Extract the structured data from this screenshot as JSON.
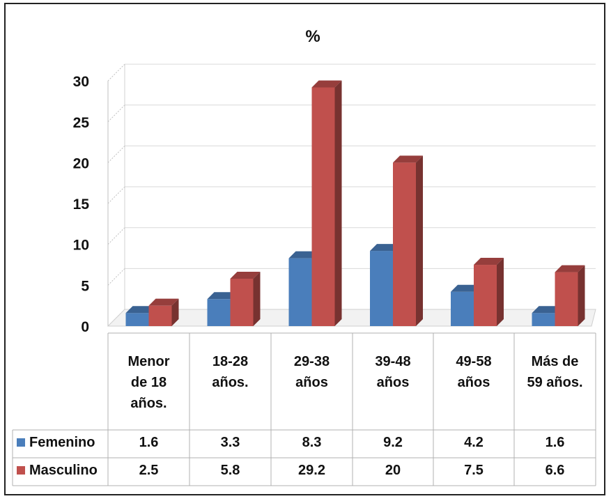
{
  "chart_data": {
    "type": "bar",
    "title": "%",
    "categories": [
      [
        "Menor",
        "de 18",
        "años."
      ],
      [
        "18-28",
        "años."
      ],
      [
        "29-38",
        "años"
      ],
      [
        "39-48",
        "años"
      ],
      [
        "49-58",
        "años"
      ],
      [
        "Más de",
        "59 años."
      ]
    ],
    "series": [
      {
        "name": "Femenino",
        "values": [
          1.6,
          3.3,
          8.3,
          9.2,
          4.2,
          1.6
        ],
        "labels": [
          "1.6",
          "3.3",
          "8.3",
          "9.2",
          "4.2",
          "1.6"
        ],
        "color": "#4a7ebb"
      },
      {
        "name": "Masculino",
        "values": [
          2.5,
          5.8,
          29.2,
          20,
          7.5,
          6.6
        ],
        "labels": [
          "2.5",
          "5.8",
          "29.2",
          "20",
          "7.5",
          "6.6"
        ],
        "color": "#c0504d"
      }
    ],
    "y_ticks": [
      "0",
      "5",
      "10",
      "15",
      "20",
      "25",
      "30"
    ],
    "ylim": [
      0,
      30
    ],
    "grid": true,
    "legend": "data-table",
    "style": "3d-clustered-column"
  }
}
